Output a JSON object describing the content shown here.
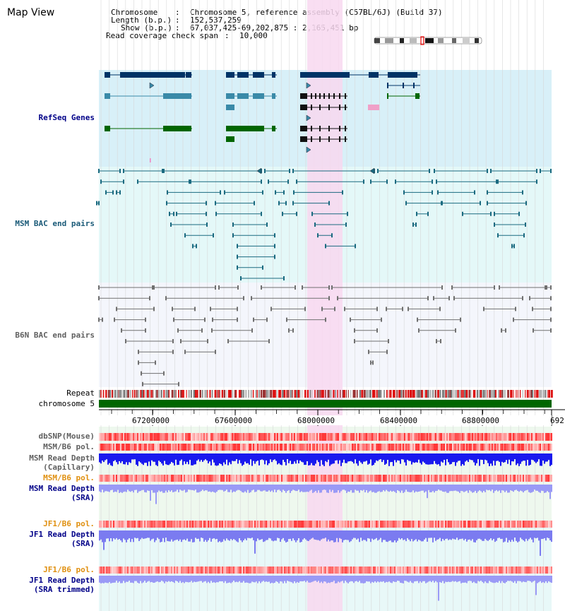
{
  "title": "Map View",
  "info": {
    "chromosome_key": "Chromosome",
    "chromosome_val": "Chromosome 5, reference assembly (C57BL/6J) (Build 37)",
    "length_key": "Length (b.p.)",
    "length_val": "152,537,259",
    "show_key": "Show (b.p.)",
    "show_val": "67,037,425-69,202,875 : 2,165,451 bp",
    "span_key": "Read coverage check span",
    "span_val": "10,000"
  },
  "tracks": {
    "refseq": "RefSeq Genes",
    "msm_bac": "MSM BAC end pairs",
    "b6n_bac": "B6N BAC end pairs",
    "repeat": "Repeat",
    "chromosome": "chromosome 5",
    "dbsnp": "dbSNP(Mouse)",
    "msm_b6_pol": "MSM/B6 pol.",
    "msm_depth_cap_1": "MSM Read Depth",
    "msm_depth_cap_2": "(Capillary)",
    "msm_b6_pol_2": "MSM/B6 pol.",
    "msm_depth_sra_1": "MSM Read Depth",
    "msm_depth_sra_2": "(SRA)",
    "jf1_b6_pol": "JF1/B6 pol.",
    "jf1_depth_sra_1": "JF1 Read Depth",
    "jf1_depth_sra_2": "(SRA)",
    "jf1_b6_pol_2": "JF1/B6 pol.",
    "jf1_depth_trim_1": "JF1 Read Depth",
    "jf1_depth_trim_2": "(SRA trimmed)"
  },
  "axis": {
    "ticks": [
      "67200000",
      "67600000",
      "68000000",
      "68400000",
      "68800000",
      "692"
    ]
  },
  "colors": {
    "refseq_bg": "#d8f0f8",
    "msm_bg": "#e4f8f8",
    "b6n_bg": "#f4f6fc",
    "highlight": "#f8d8f0",
    "gene_dark": "#003366",
    "gene_mid": "#3a8aa8",
    "gene_green": "#006600",
    "msm_line": "#1a6a80",
    "b6n_line": "#707070",
    "chrom_bar": "#006600",
    "pol_red": "#ff3b3b",
    "depth_blue": "#1a1aee",
    "depth_light": "#7b7bf0",
    "label_orange": "#e09010",
    "label_navy": "#000088"
  }
}
